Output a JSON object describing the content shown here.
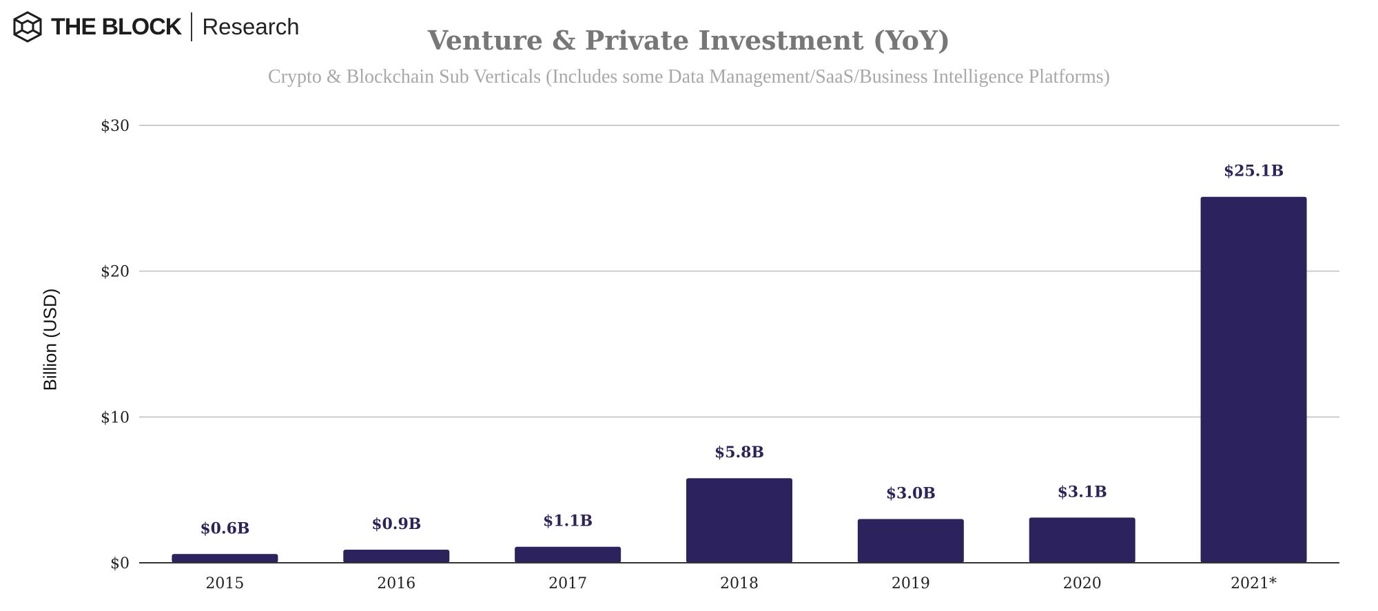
{
  "logo": {
    "brand": "THE BLOCK",
    "sub": "Research"
  },
  "colors": {
    "bar": "#2b225e",
    "label": "#2b225e",
    "grid": "#cccccc",
    "title": "#777777",
    "subtitle": "#a8a8a8"
  },
  "chart_data": {
    "type": "bar",
    "title": "Venture & Private Investment (YoY)",
    "subtitle": "Crypto & Blockchain Sub Verticals (Includes some Data Management/SaaS/Business Intelligence Platforms)",
    "xlabel": "",
    "ylabel": "Billion (USD)",
    "ylim": [
      0,
      30
    ],
    "yticks": [
      0,
      10,
      20,
      30
    ],
    "ytick_labels": [
      "$0",
      "$10",
      "$20",
      "$30"
    ],
    "grid": true,
    "categories": [
      "2015",
      "2016",
      "2017",
      "2018",
      "2019",
      "2020",
      "2021*"
    ],
    "values": [
      0.6,
      0.9,
      1.1,
      5.8,
      3.0,
      3.1,
      25.1
    ],
    "data_labels": [
      "$0.6B",
      "$0.9B",
      "$1.1B",
      "$5.8B",
      "$3.0B",
      "$3.1B",
      "$25.1B"
    ]
  }
}
